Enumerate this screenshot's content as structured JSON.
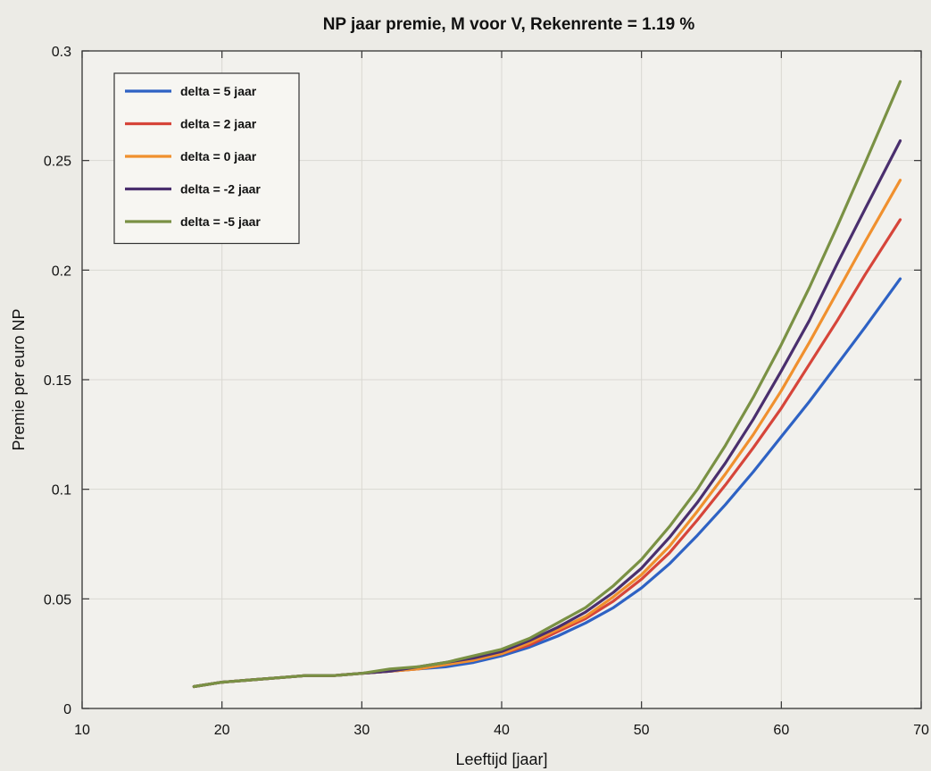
{
  "chart_data": {
    "type": "line",
    "title": "NP jaar premie, M voor V,  Rekenrente = 1.19 %",
    "xlabel": "Leeftijd [jaar]",
    "ylabel": "Premie per euro NP",
    "xlim": [
      10,
      70
    ],
    "ylim": [
      0,
      0.3
    ],
    "xticks": [
      "10",
      "20",
      "30",
      "40",
      "50",
      "60",
      "70"
    ],
    "yticks": [
      "0",
      "0.05",
      "0.1",
      "0.15",
      "0.2",
      "0.25",
      "0.3"
    ],
    "grid": true,
    "legend_position": "top-left",
    "x": [
      18,
      20,
      22,
      24,
      26,
      28,
      30,
      32,
      34,
      36,
      38,
      40,
      42,
      44,
      46,
      48,
      50,
      52,
      54,
      56,
      58,
      60,
      62,
      64,
      66,
      68.5
    ],
    "series": [
      {
        "name": "delta = 5 jaar",
        "color": "#2e62c4",
        "values": [
          0.01,
          0.012,
          0.013,
          0.014,
          0.015,
          0.015,
          0.016,
          0.017,
          0.018,
          0.019,
          0.021,
          0.024,
          0.028,
          0.033,
          0.039,
          0.046,
          0.055,
          0.066,
          0.079,
          0.093,
          0.108,
          0.124,
          0.14,
          0.157,
          0.174,
          0.196
        ]
      },
      {
        "name": "delta = 2 jaar",
        "color": "#d6453a",
        "values": [
          0.01,
          0.012,
          0.013,
          0.014,
          0.015,
          0.015,
          0.016,
          0.017,
          0.018,
          0.02,
          0.022,
          0.025,
          0.029,
          0.035,
          0.041,
          0.049,
          0.059,
          0.071,
          0.086,
          0.102,
          0.119,
          0.137,
          0.157,
          0.177,
          0.198,
          0.223
        ]
      },
      {
        "name": "delta = 0 jaar",
        "color": "#f0902e",
        "values": [
          0.01,
          0.012,
          0.013,
          0.014,
          0.015,
          0.015,
          0.016,
          0.017,
          0.018,
          0.02,
          0.022,
          0.025,
          0.03,
          0.036,
          0.042,
          0.051,
          0.061,
          0.074,
          0.09,
          0.107,
          0.125,
          0.145,
          0.167,
          0.19,
          0.213,
          0.241
        ]
      },
      {
        "name": "delta = -2 jaar",
        "color": "#4a2f6e",
        "values": [
          0.01,
          0.012,
          0.013,
          0.014,
          0.015,
          0.015,
          0.016,
          0.017,
          0.019,
          0.021,
          0.023,
          0.026,
          0.031,
          0.037,
          0.044,
          0.053,
          0.064,
          0.078,
          0.094,
          0.112,
          0.132,
          0.154,
          0.177,
          0.203,
          0.228,
          0.259
        ]
      },
      {
        "name": "delta = -5 jaar",
        "color": "#7a9144",
        "values": [
          0.01,
          0.012,
          0.013,
          0.014,
          0.015,
          0.015,
          0.016,
          0.018,
          0.019,
          0.021,
          0.024,
          0.027,
          0.032,
          0.039,
          0.046,
          0.056,
          0.068,
          0.083,
          0.1,
          0.12,
          0.142,
          0.166,
          0.192,
          0.22,
          0.249,
          0.286
        ]
      }
    ]
  }
}
